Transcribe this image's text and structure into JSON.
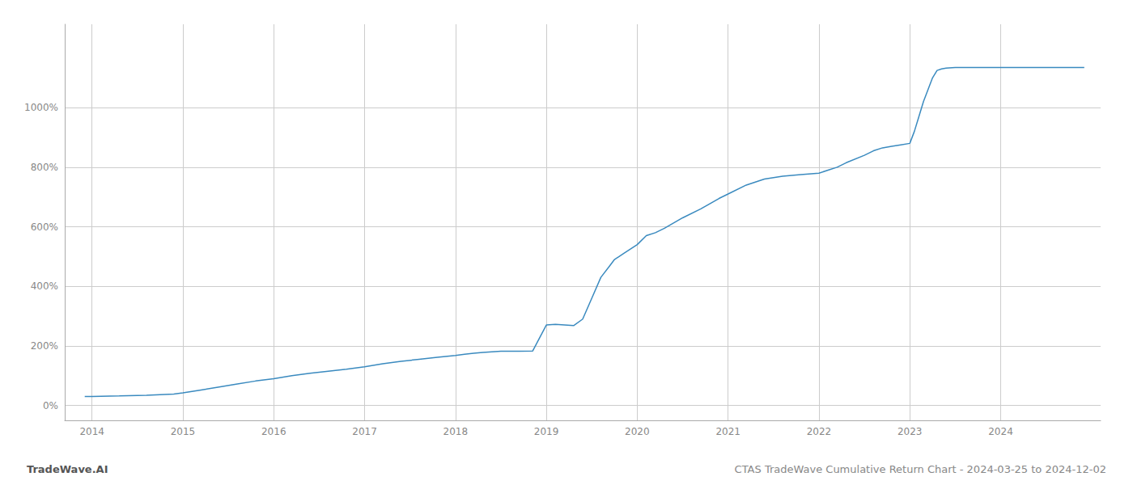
{
  "chart_data": {
    "type": "line",
    "title": "CTAS TradeWave Cumulative Return Chart - 2024-03-25 to 2024-12-02",
    "annotations": [
      "TradeWave.AI"
    ],
    "color": "#3a8abf",
    "grid": true,
    "x": [
      2013.92,
      2014.0,
      2014.1,
      2014.3,
      2014.6,
      2014.9,
      2015.0,
      2015.2,
      2015.4,
      2015.6,
      2015.8,
      2016.0,
      2016.2,
      2016.4,
      2016.6,
      2016.8,
      2017.0,
      2017.2,
      2017.4,
      2017.6,
      2017.8,
      2018.0,
      2018.1,
      2018.2,
      2018.3,
      2018.5,
      2018.7,
      2018.85,
      2019.0,
      2019.1,
      2019.2,
      2019.3,
      2019.4,
      2019.5,
      2019.6,
      2019.7,
      2019.75,
      2019.85,
      2020.0,
      2020.1,
      2020.2,
      2020.3,
      2020.5,
      2020.7,
      2020.9,
      2021.0,
      2021.2,
      2021.4,
      2021.6,
      2021.8,
      2022.0,
      2022.1,
      2022.2,
      2022.3,
      2022.5,
      2022.6,
      2022.7,
      2022.8,
      2022.9,
      2023.0,
      2023.05,
      2023.1,
      2023.15,
      2023.2,
      2023.25,
      2023.3,
      2023.35,
      2023.4,
      2023.5,
      2023.6,
      2023.7,
      2023.8,
      2023.9,
      2024.0,
      2024.1,
      2024.2,
      2024.3,
      2024.5,
      2024.75,
      2024.92
    ],
    "values": [
      30,
      30,
      31,
      32,
      34,
      38,
      42,
      52,
      62,
      72,
      82,
      90,
      100,
      108,
      115,
      122,
      130,
      140,
      148,
      155,
      162,
      168,
      172,
      175,
      178,
      182,
      182,
      183,
      270,
      272,
      270,
      268,
      290,
      360,
      430,
      470,
      490,
      510,
      540,
      570,
      580,
      595,
      630,
      660,
      695,
      710,
      740,
      760,
      770,
      775,
      780,
      790,
      800,
      815,
      840,
      855,
      865,
      870,
      875,
      880,
      920,
      970,
      1020,
      1060,
      1100,
      1125,
      1130,
      1133,
      1135,
      1135,
      1135,
      1135,
      1135,
      1135,
      1135,
      1135,
      1135,
      1135,
      1135,
      1135
    ],
    "xlim": [
      2013.7,
      2025.1
    ],
    "xticks": [
      2014,
      2015,
      2016,
      2017,
      2018,
      2019,
      2020,
      2021,
      2022,
      2023,
      2024
    ],
    "ylim": [
      -50,
      1280
    ],
    "yticks": [
      {
        "value": 0,
        "label": "0%"
      },
      {
        "value": 200,
        "label": "200%"
      },
      {
        "value": 400,
        "label": "400%"
      },
      {
        "value": 600,
        "label": "600%"
      },
      {
        "value": 800,
        "label": "800%"
      },
      {
        "value": 1000,
        "label": "1000%"
      }
    ]
  }
}
